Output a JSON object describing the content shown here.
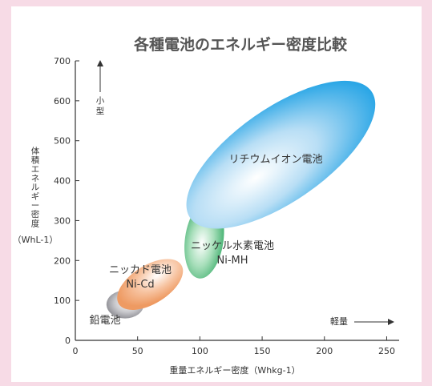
{
  "chart_data": {
    "type": "scatter",
    "title": "各種電池のエネルギー密度比較",
    "xlabel": "重量エネルギー密度（Whkg-1）",
    "ylabel_chars": [
      "体",
      "積",
      "エ",
      "ネ",
      "ル",
      "ギ",
      "ー",
      "密",
      "度"
    ],
    "ylabel_unit": "（WhL-1）",
    "xlim": [
      0,
      260
    ],
    "ylim": [
      0,
      700
    ],
    "x_ticks": [
      0,
      50,
      100,
      150,
      200,
      250
    ],
    "y_ticks": [
      0,
      100,
      200,
      300,
      400,
      500,
      600,
      700
    ],
    "grid": false,
    "annotations": {
      "up_label_chars": [
        "小",
        "型"
      ],
      "right_label": "軽量"
    },
    "series": [
      {
        "name": "鉛電池",
        "sublabel": "",
        "x_range": [
          25,
          55
        ],
        "y_range": [
          55,
          125
        ],
        "color": "#9a9aa0"
      },
      {
        "name": "ニッカド電池",
        "sublabel": "Ni-Cd",
        "x_range": [
          35,
          85
        ],
        "y_range": [
          70,
          210
        ],
        "color": "#f0a070"
      },
      {
        "name": "ニッケル水素電池",
        "sublabel": "Ni-MH",
        "x_range": [
          85,
          122
        ],
        "y_range": [
          140,
          365
        ],
        "color": "#5cc082"
      },
      {
        "name": "リチウムイオン電池",
        "sublabel": "",
        "x_range": [
          85,
          245
        ],
        "y_range": [
          305,
          625
        ],
        "color": "#3fb0e6"
      }
    ]
  }
}
